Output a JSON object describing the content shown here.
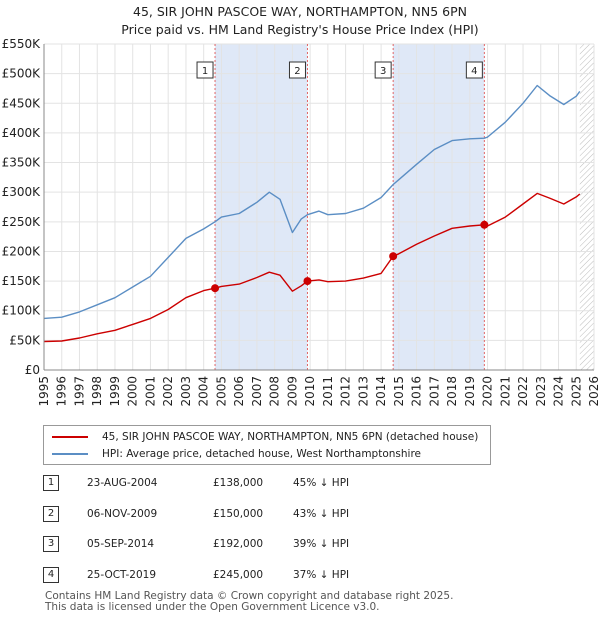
{
  "title": {
    "line1": "45, SIR JOHN PASCOE WAY, NORTHAMPTON, NN5 6PN",
    "line2": "Price paid vs. HM Land Registry's House Price Index (HPI)"
  },
  "colors": {
    "property": "#cc0000",
    "hpi": "#5b8ec4",
    "band": "#dfe8f7",
    "marker_line": "#e06666",
    "grid": "#e3e3e3"
  },
  "legend": {
    "property_label": "45, SIR JOHN PASCOE WAY, NORTHAMPTON, NN5 6PN (detached house)",
    "hpi_label": "HPI: Average price, detached house, West Northamptonshire"
  },
  "transactions": [
    {
      "num": "1",
      "date": "23-AUG-2004",
      "price": "£138,000",
      "hpi": "45% ↓ HPI"
    },
    {
      "num": "2",
      "date": "06-NOV-2009",
      "price": "£150,000",
      "hpi": "43% ↓ HPI"
    },
    {
      "num": "3",
      "date": "05-SEP-2014",
      "price": "£192,000",
      "hpi": "39% ↓ HPI"
    },
    {
      "num": "4",
      "date": "25-OCT-2019",
      "price": "£245,000",
      "hpi": "37% ↓ HPI"
    }
  ],
  "footer": {
    "line1": "Contains HM Land Registry data © Crown copyright and database right 2025.",
    "line2": "This data is licensed under the Open Government Licence v3.0."
  },
  "chart_data": {
    "type": "line",
    "title": "45, SIR JOHN PASCOE WAY, NORTHAMPTON, NN5 6PN — Price paid vs. HM Land Registry's House Price Index (HPI)",
    "xlim": [
      1995,
      2026
    ],
    "ylim": [
      0,
      550000
    ],
    "x_ticks": [
      1995,
      1996,
      1997,
      1998,
      1999,
      2000,
      2001,
      2002,
      2003,
      2004,
      2005,
      2006,
      2007,
      2008,
      2009,
      2010,
      2011,
      2012,
      2013,
      2014,
      2015,
      2016,
      2017,
      2018,
      2019,
      2020,
      2021,
      2022,
      2023,
      2024,
      2025,
      2026
    ],
    "y_ticks": [
      {
        "value": 0,
        "label": "£0"
      },
      {
        "value": 50000,
        "label": "£50K"
      },
      {
        "value": 100000,
        "label": "£100K"
      },
      {
        "value": 150000,
        "label": "£150K"
      },
      {
        "value": 200000,
        "label": "£200K"
      },
      {
        "value": 250000,
        "label": "£250K"
      },
      {
        "value": 300000,
        "label": "£300K"
      },
      {
        "value": 350000,
        "label": "£350K"
      },
      {
        "value": 400000,
        "label": "£400K"
      },
      {
        "value": 450000,
        "label": "£450K"
      },
      {
        "value": 500000,
        "label": "£500K"
      },
      {
        "value": 550000,
        "label": "£550K"
      }
    ],
    "grid": true,
    "shaded_periods": [
      [
        2004.64,
        2009.85
      ],
      [
        2014.68,
        2019.82
      ]
    ],
    "forecast_start": 2025.2,
    "markers": [
      {
        "label": "1",
        "x": 2004.64,
        "y": 138000
      },
      {
        "label": "2",
        "x": 2009.85,
        "y": 150000
      },
      {
        "label": "3",
        "x": 2014.68,
        "y": 192000
      },
      {
        "label": "4",
        "x": 2019.82,
        "y": 245000
      }
    ],
    "series": [
      {
        "name": "45, SIR JOHN PASCOE WAY, NORTHAMPTON, NN5 6PN (detached house)",
        "color": "#cc0000",
        "points": [
          [
            1995,
            48000
          ],
          [
            1996,
            49000
          ],
          [
            1997,
            54000
          ],
          [
            1998,
            61000
          ],
          [
            1999,
            67000
          ],
          [
            2000,
            77000
          ],
          [
            2001,
            87000
          ],
          [
            2002,
            102000
          ],
          [
            2003,
            122000
          ],
          [
            2004,
            134000
          ],
          [
            2004.64,
            138000
          ],
          [
            2005,
            141000
          ],
          [
            2006,
            145000
          ],
          [
            2007,
            156000
          ],
          [
            2007.7,
            165000
          ],
          [
            2008.3,
            160000
          ],
          [
            2009,
            133000
          ],
          [
            2009.5,
            142000
          ],
          [
            2009.85,
            150000
          ],
          [
            2010.5,
            152000
          ],
          [
            2011,
            149000
          ],
          [
            2012,
            150000
          ],
          [
            2013,
            155000
          ],
          [
            2014,
            163000
          ],
          [
            2014.68,
            192000
          ],
          [
            2015,
            196000
          ],
          [
            2016,
            212000
          ],
          [
            2017,
            226000
          ],
          [
            2018,
            239000
          ],
          [
            2019,
            243000
          ],
          [
            2019.82,
            245000
          ],
          [
            2020,
            243000
          ],
          [
            2021,
            258000
          ],
          [
            2022,
            280000
          ],
          [
            2022.8,
            298000
          ],
          [
            2023.5,
            290000
          ],
          [
            2024.3,
            280000
          ],
          [
            2025,
            292000
          ],
          [
            2025.2,
            297000
          ]
        ]
      },
      {
        "name": "HPI: Average price, detached house, West Northamptonshire",
        "color": "#5b8ec4",
        "points": [
          [
            1995,
            87000
          ],
          [
            1996,
            89000
          ],
          [
            1997,
            98000
          ],
          [
            1998,
            110000
          ],
          [
            1999,
            122000
          ],
          [
            2000,
            140000
          ],
          [
            2001,
            158000
          ],
          [
            2002,
            190000
          ],
          [
            2003,
            222000
          ],
          [
            2004,
            238000
          ],
          [
            2004.64,
            250000
          ],
          [
            2005,
            258000
          ],
          [
            2006,
            264000
          ],
          [
            2007,
            283000
          ],
          [
            2007.7,
            300000
          ],
          [
            2008.3,
            288000
          ],
          [
            2009,
            232000
          ],
          [
            2009.5,
            255000
          ],
          [
            2009.85,
            262000
          ],
          [
            2010.5,
            268000
          ],
          [
            2011,
            262000
          ],
          [
            2012,
            264000
          ],
          [
            2013,
            273000
          ],
          [
            2014,
            291000
          ],
          [
            2014.68,
            313000
          ],
          [
            2015,
            321000
          ],
          [
            2016,
            347000
          ],
          [
            2017,
            372000
          ],
          [
            2018,
            387000
          ],
          [
            2019,
            390000
          ],
          [
            2019.82,
            391000
          ],
          [
            2020,
            393000
          ],
          [
            2021,
            418000
          ],
          [
            2022,
            450000
          ],
          [
            2022.8,
            480000
          ],
          [
            2023.5,
            463000
          ],
          [
            2024.3,
            448000
          ],
          [
            2025,
            462000
          ],
          [
            2025.2,
            470000
          ]
        ]
      }
    ]
  }
}
